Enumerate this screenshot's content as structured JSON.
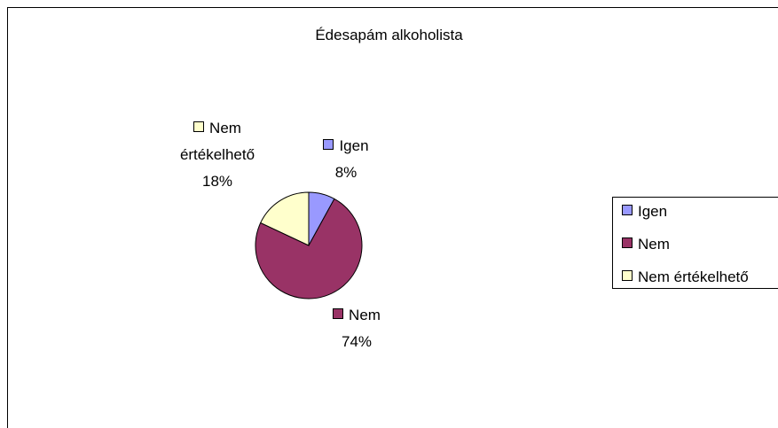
{
  "chart_data": {
    "type": "pie",
    "title": "Édesapám alkoholista",
    "categories": [
      "Igen",
      "Nem",
      "Nem értékelhető"
    ],
    "values": [
      8,
      74,
      18
    ],
    "value_labels": [
      "8%",
      "74%",
      "18%"
    ],
    "colors": [
      "#9999ff",
      "#993366",
      "#ffffcc"
    ],
    "legend": "right"
  }
}
